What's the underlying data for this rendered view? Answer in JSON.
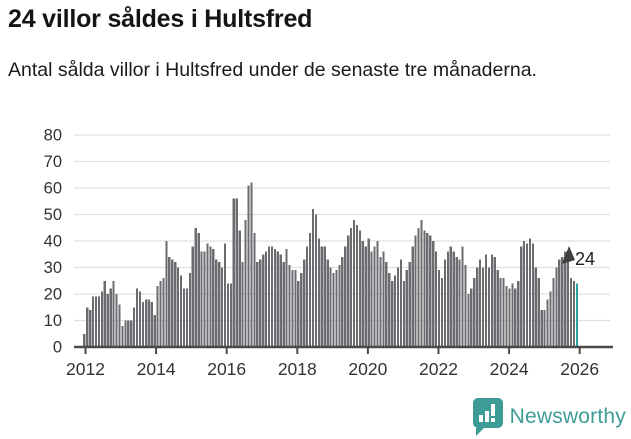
{
  "header": {},
  "chart_data": {
    "type": "bar",
    "title": "24 villor såldes i Hultsfred",
    "subtitle": "Antal sålda villor i Hultsfred under de senaste tre månaderna.",
    "x_start": "2012-01",
    "x_end": "2026-01",
    "x_unit": "month",
    "ylim": [
      0,
      80
    ],
    "yticks": [
      0,
      10,
      20,
      30,
      40,
      50,
      60,
      70,
      80
    ],
    "xticks": [
      2012,
      2014,
      2016,
      2018,
      2020,
      2022,
      2024,
      2026
    ],
    "grid": true,
    "annotation": {
      "text": "24",
      "value": 24
    },
    "values": [
      5,
      15,
      14,
      19,
      19,
      19,
      21,
      25,
      20,
      22,
      25,
      20,
      16,
      8,
      10,
      10,
      10,
      15,
      22,
      21,
      17,
      18,
      18,
      17,
      12,
      23,
      25,
      26,
      40,
      34,
      33,
      32,
      30,
      27,
      22,
      22,
      28,
      38,
      45,
      43,
      36,
      36,
      39,
      38,
      37,
      33,
      32,
      30,
      39,
      24,
      24,
      56,
      56,
      44,
      32,
      48,
      61,
      62,
      43,
      32,
      33,
      35,
      36,
      38,
      38,
      37,
      36,
      35,
      32,
      37,
      31,
      29,
      29,
      25,
      28,
      33,
      38,
      43,
      52,
      50,
      41,
      38,
      38,
      33,
      30,
      28,
      29,
      31,
      34,
      38,
      42,
      45,
      48,
      46,
      44,
      40,
      38,
      41,
      36,
      38,
      40,
      34,
      36,
      32,
      28,
      25,
      27,
      30,
      33,
      25,
      29,
      32,
      38,
      42,
      45,
      48,
      44,
      43,
      42,
      40,
      36,
      29,
      26,
      33,
      36,
      38,
      36,
      34,
      33,
      38,
      31,
      20,
      22,
      26,
      30,
      33,
      30,
      35,
      30,
      35,
      34,
      29,
      26,
      26,
      23,
      22,
      24,
      22,
      25,
      38,
      40,
      39,
      41,
      39,
      30,
      26,
      14,
      14,
      18,
      21,
      26,
      30,
      33,
      34,
      36,
      35,
      26,
      25,
      24
    ]
  },
  "footer": {
    "brand": "Newsworthy"
  },
  "colors": {
    "bar": "#6b6b70",
    "highlight": "#2ba1a1",
    "grid": "#e0e0e0",
    "axis": "#4a4a4a",
    "tick_text": "#333333",
    "annotation_text": "#1f1f1f",
    "annotation_arrow": "#3f3f3f",
    "brand": "#3e9c96"
  }
}
